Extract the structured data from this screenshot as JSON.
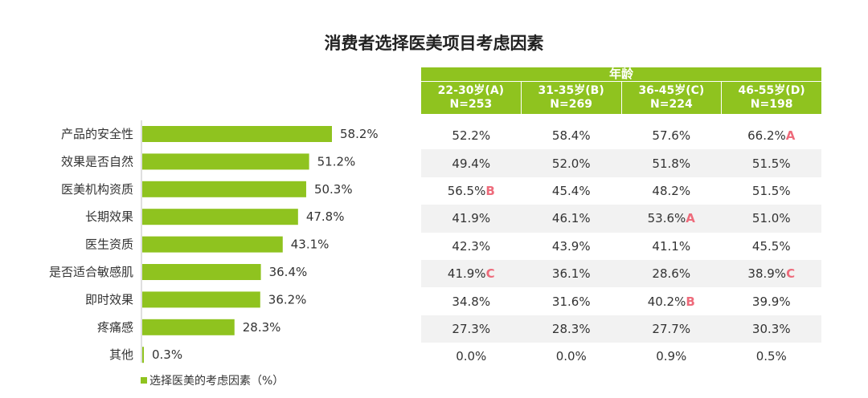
{
  "title": "消费者选择医美项目考虑因素",
  "legend_label": "选择医美的考虑因素（%）",
  "colors": {
    "bar": "#8fc31f",
    "header": "#8fc31f",
    "sig": "#ee6b7b",
    "row_shade": "#f2f2f2"
  },
  "chart_data": {
    "type": "bar",
    "orientation": "horizontal",
    "categories": [
      "产品的安全性",
      "效果是否自然",
      "医美机构资质",
      "长期效果",
      "医生资质",
      "是否适合敏感肌",
      "即时效果",
      "疼痛感",
      "其他"
    ],
    "values": [
      58.2,
      51.2,
      50.3,
      47.8,
      43.1,
      36.4,
      36.2,
      28.3,
      0.3
    ],
    "value_labels": [
      "58.2%",
      "51.2%",
      "50.3%",
      "47.8%",
      "43.1%",
      "36.4%",
      "36.2%",
      "28.3%",
      "0.3%"
    ],
    "xlim": [
      0,
      100
    ],
    "legend": "bottom-left",
    "grid": false
  },
  "table": {
    "header": "年龄",
    "groups": [
      {
        "label": "22-30岁(A)",
        "n": "N=253"
      },
      {
        "label": "31-35岁(B)",
        "n": "N=269"
      },
      {
        "label": "36-45岁(C)",
        "n": "N=224"
      },
      {
        "label": "46-55岁(D)",
        "n": "N=198"
      }
    ],
    "rows": [
      [
        {
          "v": "52.2%",
          "s": ""
        },
        {
          "v": "58.4%",
          "s": ""
        },
        {
          "v": "57.6%",
          "s": ""
        },
        {
          "v": "66.2%",
          "s": "A"
        }
      ],
      [
        {
          "v": "49.4%",
          "s": ""
        },
        {
          "v": "52.0%",
          "s": ""
        },
        {
          "v": "51.8%",
          "s": ""
        },
        {
          "v": "51.5%",
          "s": ""
        }
      ],
      [
        {
          "v": "56.5%",
          "s": "B"
        },
        {
          "v": "45.4%",
          "s": ""
        },
        {
          "v": "48.2%",
          "s": ""
        },
        {
          "v": "51.5%",
          "s": ""
        }
      ],
      [
        {
          "v": "41.9%",
          "s": ""
        },
        {
          "v": "46.1%",
          "s": ""
        },
        {
          "v": "53.6%",
          "s": "A"
        },
        {
          "v": "51.0%",
          "s": ""
        }
      ],
      [
        {
          "v": "42.3%",
          "s": ""
        },
        {
          "v": "43.9%",
          "s": ""
        },
        {
          "v": "41.1%",
          "s": ""
        },
        {
          "v": "45.5%",
          "s": ""
        }
      ],
      [
        {
          "v": "41.9%",
          "s": "C"
        },
        {
          "v": "36.1%",
          "s": ""
        },
        {
          "v": "28.6%",
          "s": ""
        },
        {
          "v": "38.9%",
          "s": "C"
        }
      ],
      [
        {
          "v": "34.8%",
          "s": ""
        },
        {
          "v": "31.6%",
          "s": ""
        },
        {
          "v": "40.2%",
          "s": "B"
        },
        {
          "v": "39.9%",
          "s": ""
        }
      ],
      [
        {
          "v": "27.3%",
          "s": ""
        },
        {
          "v": "28.3%",
          "s": ""
        },
        {
          "v": "27.7%",
          "s": ""
        },
        {
          "v": "30.3%",
          "s": ""
        }
      ],
      [
        {
          "v": "0.0%",
          "s": ""
        },
        {
          "v": "0.0%",
          "s": ""
        },
        {
          "v": "0.9%",
          "s": ""
        },
        {
          "v": "0.5%",
          "s": ""
        }
      ]
    ]
  }
}
